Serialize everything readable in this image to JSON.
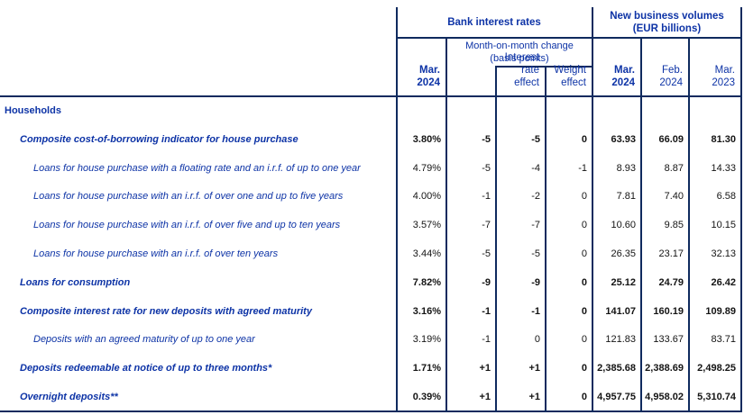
{
  "colors": {
    "border_navy": "#0f2a5e",
    "label_blue": "#0d33a6",
    "value_black": "#141414",
    "background": "#ffffff"
  },
  "header": {
    "bank_interest_rates": "Bank interest rates",
    "new_business_volumes": [
      "New business volumes",
      "(EUR billions)"
    ],
    "mom_change": [
      "Month-on-month change",
      "(basis points)"
    ],
    "columns": [
      {
        "id": "rate_mar_2024",
        "lines": [
          "Mar.",
          "2024"
        ],
        "bold": true
      },
      {
        "id": "mom_blank",
        "lines": [
          "",
          ""
        ],
        "bold": false
      },
      {
        "id": "interest_rate_effect",
        "lines": [
          "Interest",
          "rate effect"
        ],
        "bold": false
      },
      {
        "id": "weight_effect",
        "lines": [
          "Weight",
          "effect"
        ],
        "bold": false
      },
      {
        "id": "vol_mar_2024",
        "lines": [
          "Mar.",
          "2024"
        ],
        "bold": true
      },
      {
        "id": "vol_feb_2024",
        "lines": [
          "Feb.",
          "2024"
        ],
        "bold": false
      },
      {
        "id": "vol_mar_2023",
        "lines": [
          "Mar.",
          "2023"
        ],
        "bold": false
      }
    ]
  },
  "table": {
    "rows": [
      {
        "label": "Households",
        "level": 0,
        "emphasis": true,
        "values": [
          "",
          "",
          "",
          "",
          "",
          "",
          ""
        ]
      },
      {
        "label": "Composite cost-of-borrowing indicator for house purchase",
        "level": 1,
        "emphasis": true,
        "values": [
          "3.80%",
          "-5",
          "-5",
          "0",
          "63.93",
          "66.09",
          "81.30"
        ]
      },
      {
        "label": "Loans for house purchase with a floating rate and an i.r.f. of up to one year",
        "level": 2,
        "emphasis": false,
        "values": [
          "4.79%",
          "-5",
          "-4",
          "-1",
          "8.93",
          "8.87",
          "14.33"
        ]
      },
      {
        "label": "Loans for house purchase with an i.r.f. of over one and up to five years",
        "level": 2,
        "emphasis": false,
        "values": [
          "4.00%",
          "-1",
          "-2",
          "0",
          "7.81",
          "7.40",
          "6.58"
        ]
      },
      {
        "label": "Loans for house purchase with an i.r.f. of over five and up to ten years",
        "level": 2,
        "emphasis": false,
        "values": [
          "3.57%",
          "-7",
          "-7",
          "0",
          "10.60",
          "9.85",
          "10.15"
        ]
      },
      {
        "label": "Loans for house purchase with an i.r.f. of over ten years",
        "level": 2,
        "emphasis": false,
        "values": [
          "3.44%",
          "-5",
          "-5",
          "0",
          "26.35",
          "23.17",
          "32.13"
        ]
      },
      {
        "label": "Loans for consumption",
        "level": 1,
        "emphasis": true,
        "values": [
          "7.82%",
          "-9",
          "-9",
          "0",
          "25.12",
          "24.79",
          "26.42"
        ]
      },
      {
        "label": "Composite interest rate for new deposits with agreed maturity",
        "level": 1,
        "emphasis": true,
        "values": [
          "3.16%",
          "-1",
          "-1",
          "0",
          "141.07",
          "160.19",
          "109.89"
        ]
      },
      {
        "label": "Deposits with an agreed maturity of up to one year",
        "level": 2,
        "emphasis": false,
        "values": [
          "3.19%",
          "-1",
          "0",
          "0",
          "121.83",
          "133.67",
          "83.71"
        ]
      },
      {
        "label": "Deposits redeemable at notice of up to three months*",
        "level": 1,
        "emphasis": true,
        "values": [
          "1.71%",
          "+1",
          "+1",
          "0",
          "2,385.68",
          "2,388.69",
          "2,498.25"
        ]
      },
      {
        "label": "Overnight deposits**",
        "level": 1,
        "emphasis": true,
        "values": [
          "0.39%",
          "+1",
          "+1",
          "0",
          "4,957.75",
          "4,958.02",
          "5,310.74"
        ]
      }
    ]
  }
}
